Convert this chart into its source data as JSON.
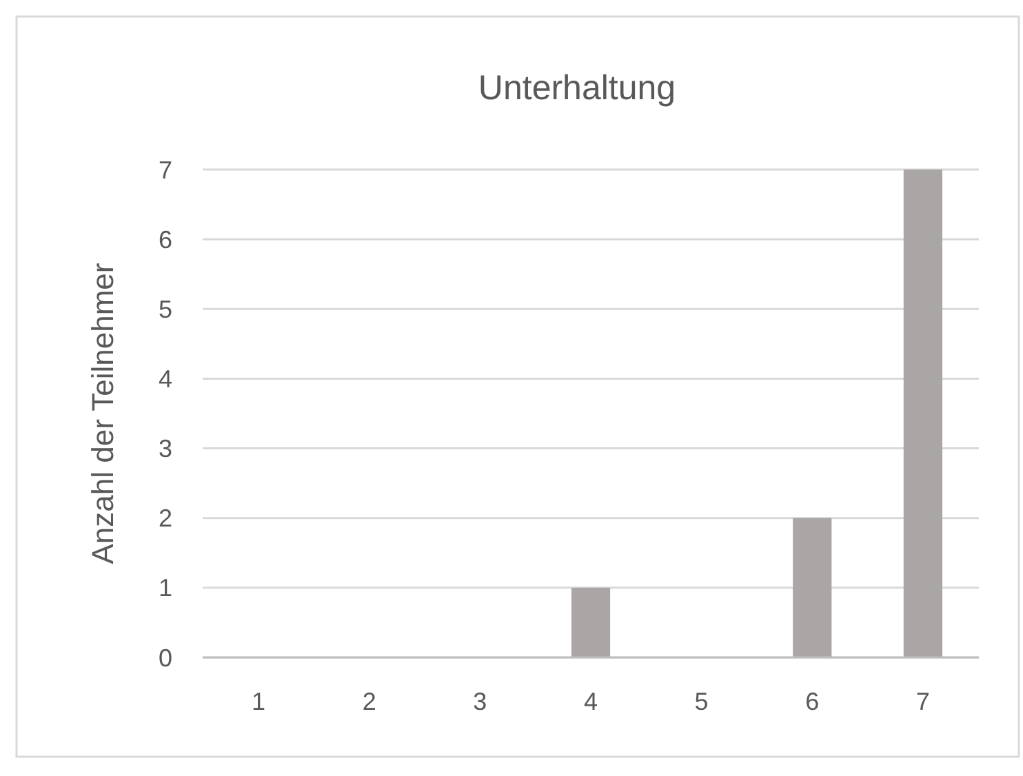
{
  "chart_data": {
    "type": "bar",
    "title": "Unterhaltung",
    "ylabel": "Anzahl der Teilnehmer",
    "categories": [
      "1",
      "2",
      "3",
      "4",
      "5",
      "6",
      "7"
    ],
    "values": [
      0,
      0,
      0,
      1,
      0,
      2,
      7
    ],
    "color": "#aba6a6",
    "ylim": [
      0,
      7
    ],
    "yticks": [
      0,
      1,
      2,
      3,
      4,
      5,
      6,
      7
    ],
    "grid": "y"
  }
}
